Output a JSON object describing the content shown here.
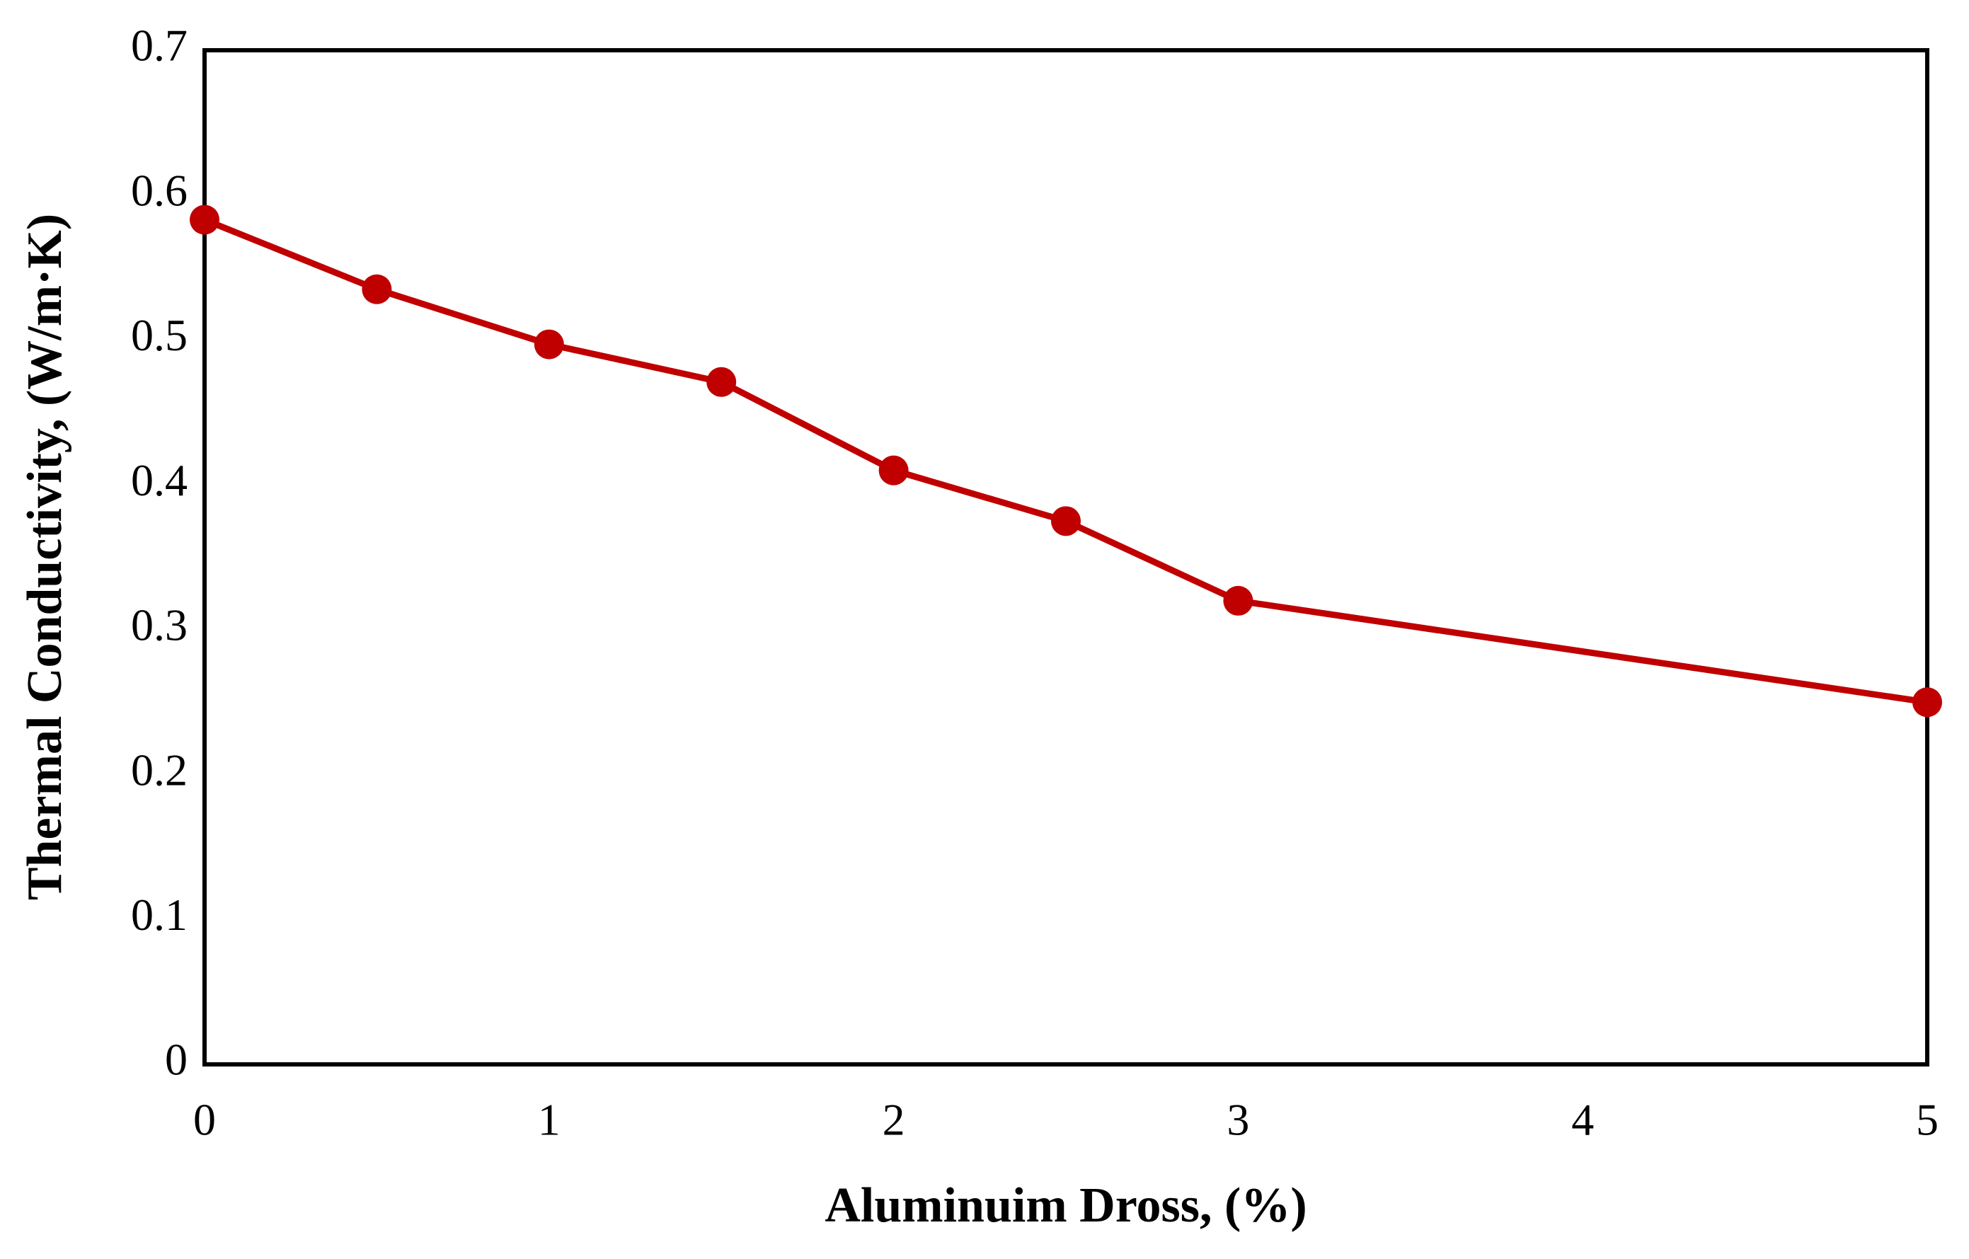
{
  "chart_data": {
    "type": "line",
    "x_label": "Aluminuim Dross, (%)",
    "y_label": "Thermal Conductivity, (W/m·K)",
    "x": [
      0,
      0.5,
      1,
      1.5,
      2,
      2.5,
      3,
      5
    ],
    "series": [
      {
        "name": "Thermal Conductivity",
        "color": "#c00000",
        "values": [
          0.583,
          0.535,
          0.497,
          0.471,
          0.41,
          0.375,
          0.32,
          0.25
        ]
      }
    ],
    "xlim": [
      0,
      5
    ],
    "xticks": [
      0,
      1,
      2,
      3,
      4,
      5
    ],
    "ylim": [
      0,
      0.7
    ],
    "yticks": [
      0,
      0.1,
      0.2,
      0.3,
      0.4,
      0.5,
      0.6,
      0.7
    ],
    "grid": false
  }
}
